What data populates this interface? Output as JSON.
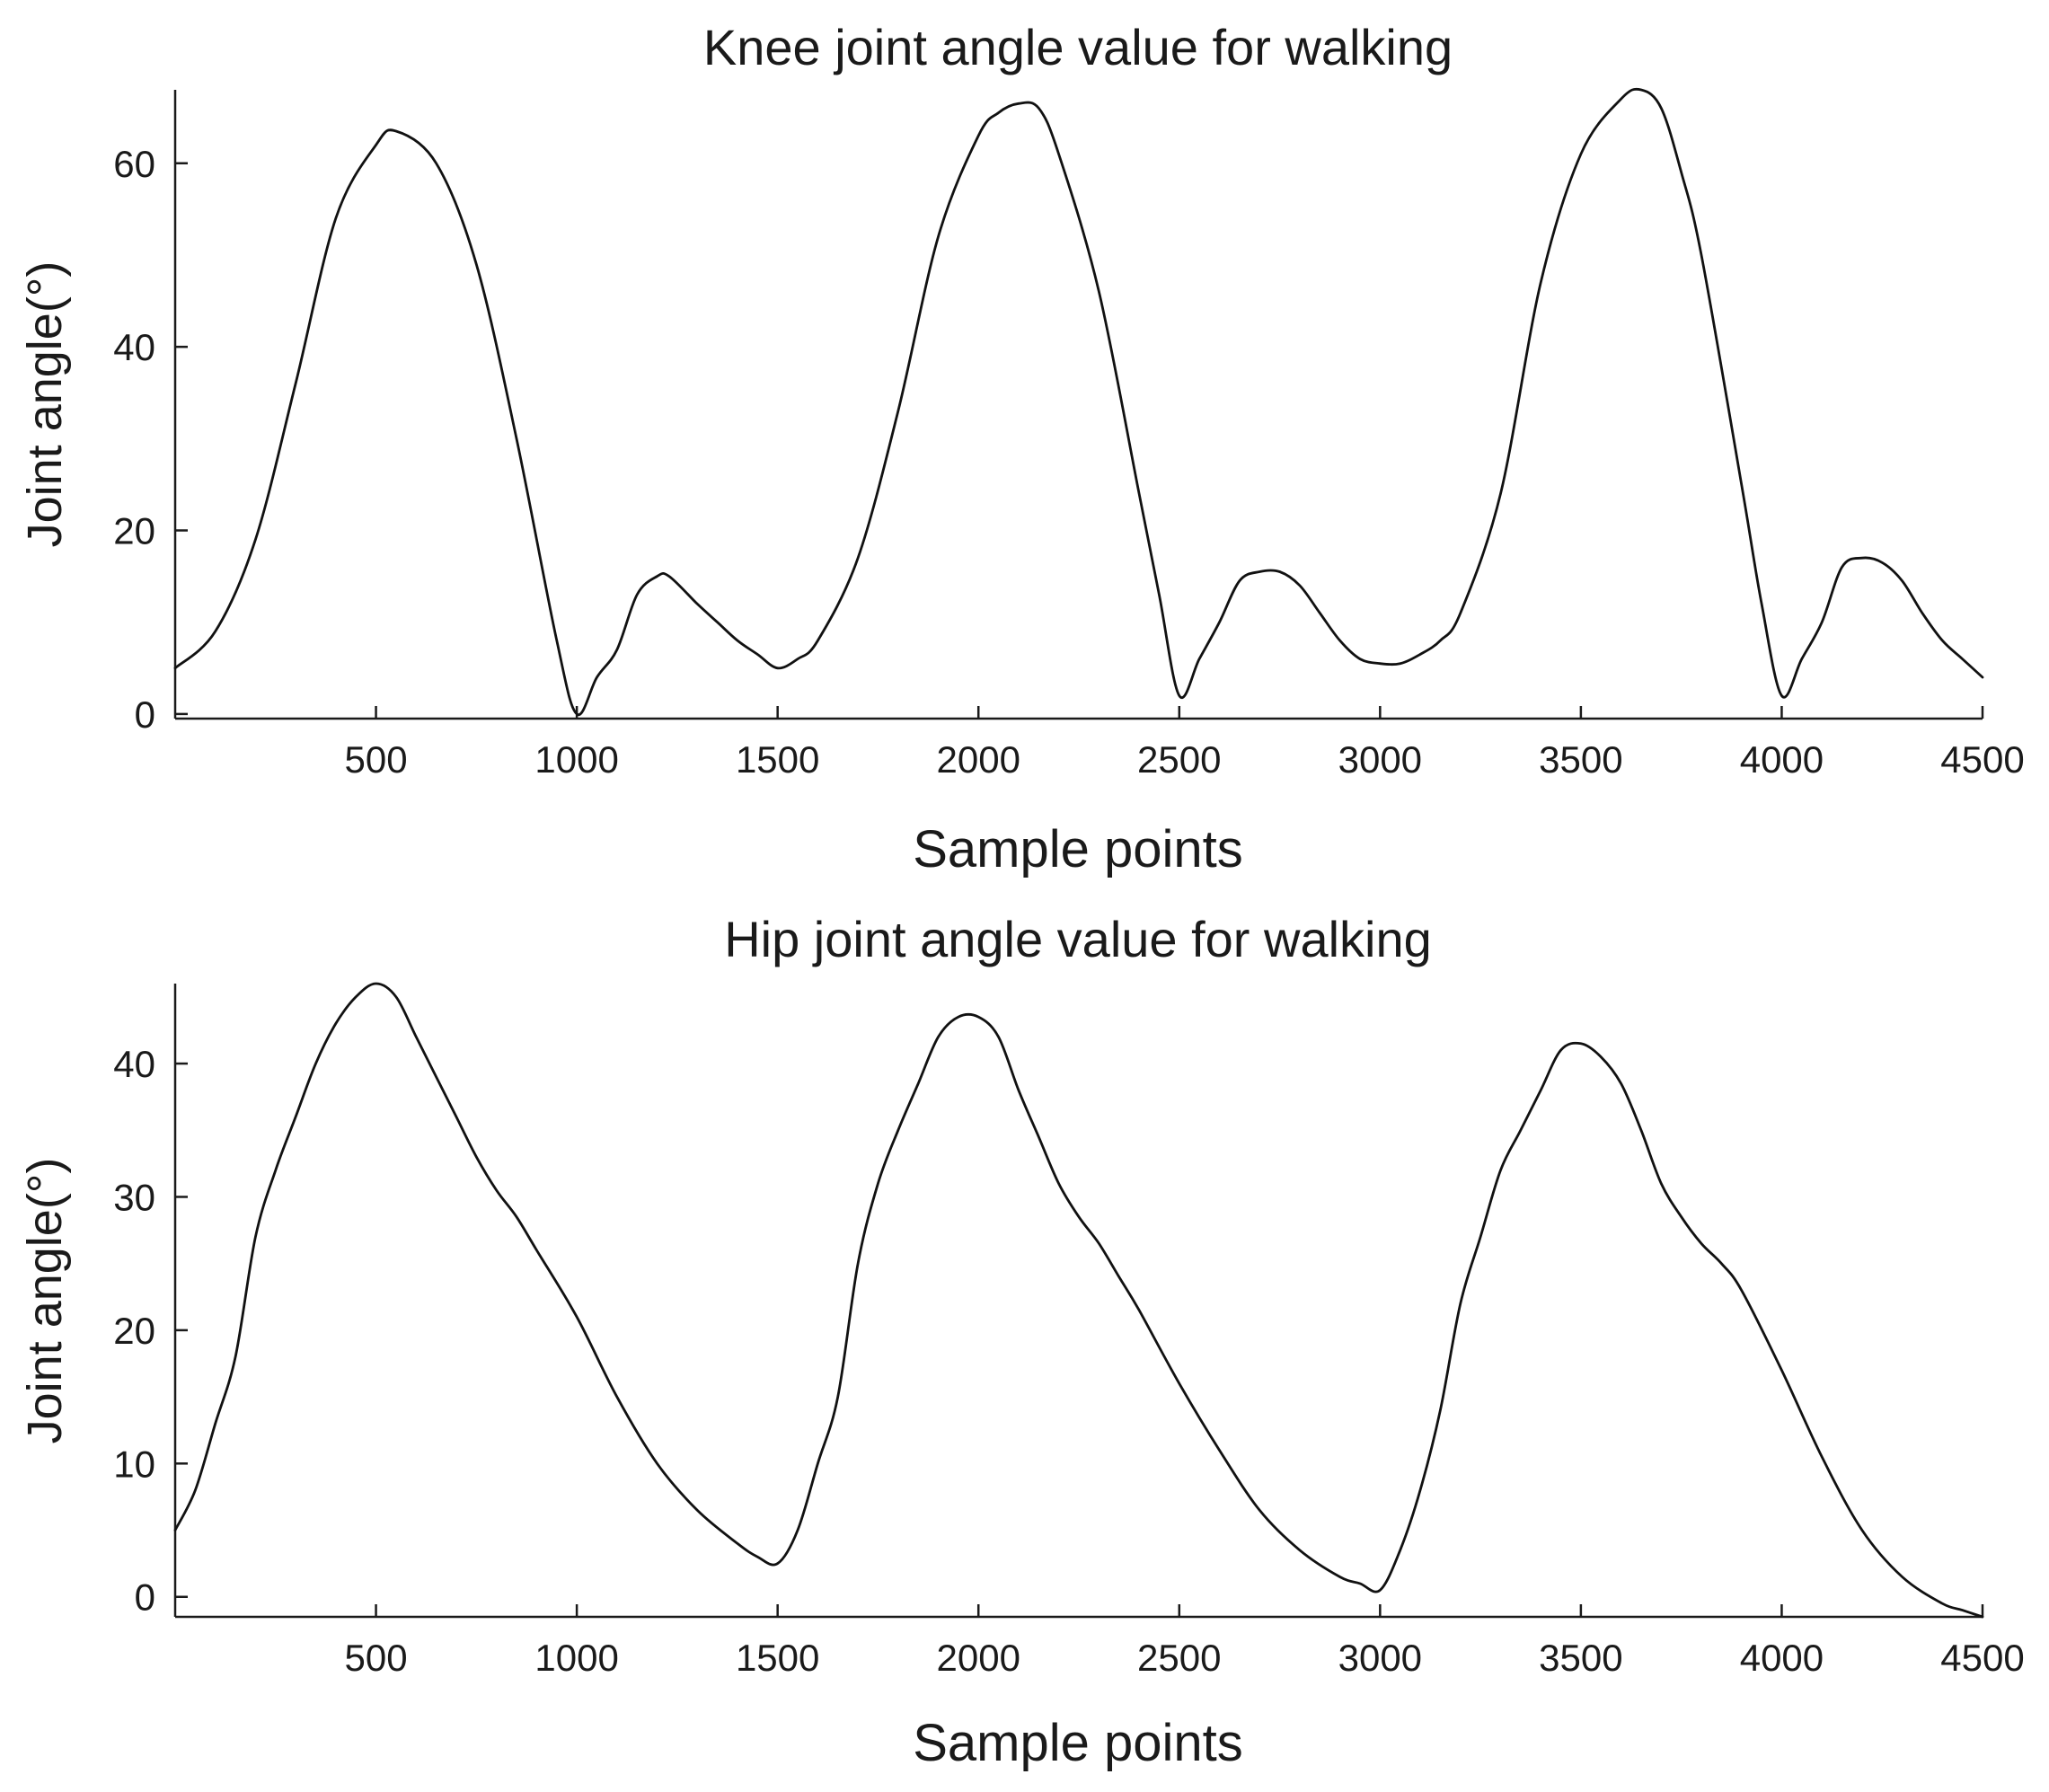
{
  "chart_data": [
    {
      "type": "line",
      "title": "Knee joint angle value for walking",
      "xlabel": "Sample points",
      "ylabel": "Joint angle(°)",
      "xlim": [
        0,
        4500
      ],
      "ylim": [
        -0.5,
        68
      ],
      "xticks": [
        500,
        1000,
        1500,
        2000,
        2500,
        3000,
        3500,
        4000,
        4500
      ],
      "yticks": [
        0,
        20,
        40,
        60
      ],
      "grid": false,
      "series": [
        {
          "x": [
            0,
            100,
            200,
            300,
            400,
            500,
            550,
            650,
            750,
            850,
            950,
            1000,
            1050,
            1100,
            1150,
            1200,
            1230,
            1300,
            1350,
            1400,
            1450,
            1500,
            1550,
            1600,
            1700,
            1800,
            1900,
            2000,
            2050,
            2100,
            2150,
            2200,
            2300,
            2400,
            2450,
            2500,
            2550,
            2600,
            2650,
            2700,
            2750,
            2800,
            2850,
            2900,
            2950,
            3000,
            3050,
            3100,
            3150,
            3200,
            3300,
            3400,
            3500,
            3600,
            3650,
            3700,
            3750,
            3800,
            3900,
            3950,
            4000,
            4050,
            4100,
            4150,
            4200,
            4250,
            4300,
            4350,
            4400,
            4450,
            4500
          ],
          "values": [
            5,
            9,
            19,
            36,
            54,
            62,
            63.5,
            60,
            49,
            30,
            8,
            0,
            4,
            7,
            13,
            15,
            15,
            12,
            10,
            8,
            6.5,
            5,
            6,
            8,
            17,
            33,
            52,
            63,
            65.5,
            66.5,
            66,
            61,
            46,
            24,
            13,
            2,
            6,
            10,
            14.5,
            15.5,
            15.5,
            14,
            11,
            8,
            6,
            5.5,
            5.5,
            6.5,
            8,
            11,
            24,
            47,
            61,
            67,
            68,
            66,
            59,
            50,
            25,
            12,
            2,
            6,
            10,
            16,
            17,
            16.5,
            14.5,
            11,
            8,
            6,
            4
          ]
        }
      ]
    },
    {
      "type": "line",
      "title": "Hip joint angle value for walking",
      "xlabel": "Sample points",
      "ylabel": "Joint angle(°)",
      "xlim": [
        0,
        4500
      ],
      "ylim": [
        -1.5,
        46
      ],
      "xticks": [
        500,
        1000,
        1500,
        2000,
        2500,
        3000,
        3500,
        4000,
        4500
      ],
      "yticks": [
        0,
        10,
        20,
        30,
        40
      ],
      "grid": false,
      "series": [
        {
          "x": [
            0,
            50,
            100,
            150,
            200,
            250,
            300,
            350,
            400,
            450,
            500,
            550,
            600,
            650,
            700,
            750,
            800,
            850,
            900,
            1000,
            1100,
            1200,
            1300,
            1400,
            1450,
            1500,
            1550,
            1600,
            1650,
            1700,
            1750,
            1800,
            1850,
            1900,
            1950,
            2000,
            2050,
            2100,
            2150,
            2200,
            2250,
            2300,
            2350,
            2400,
            2500,
            2600,
            2700,
            2800,
            2900,
            2950,
            3000,
            3050,
            3100,
            3150,
            3200,
            3250,
            3300,
            3350,
            3400,
            3450,
            3500,
            3550,
            3600,
            3650,
            3700,
            3750,
            3800,
            3850,
            3900,
            4000,
            4100,
            4200,
            4300,
            4400,
            4450,
            4500
          ],
          "values": [
            5,
            8,
            13,
            18,
            27,
            32,
            36,
            40,
            43,
            45,
            46,
            45,
            42,
            39,
            36,
            33,
            30.5,
            28.5,
            26,
            21,
            15,
            10,
            6.5,
            4,
            3,
            2.5,
            5,
            10,
            15,
            25,
            31,
            35,
            38.5,
            42,
            43.5,
            43.5,
            42,
            38,
            34.5,
            31,
            28.5,
            26.5,
            24,
            21.5,
            16,
            11,
            6.5,
            3.5,
            1.5,
            1,
            0.5,
            3.5,
            8,
            14,
            22,
            27,
            32,
            35,
            38,
            41,
            41.5,
            40.5,
            38.5,
            35,
            31,
            28.5,
            26.5,
            25,
            23,
            17,
            10.5,
            5,
            1.5,
            -0.5,
            -1,
            -1.5
          ]
        }
      ]
    }
  ],
  "text": {
    "chart1": {
      "title": "Knee joint angle value for walking",
      "xlabel": "Sample points",
      "ylabel": "Joint angle(°)",
      "xtick_labels": [
        "500",
        "1000",
        "1500",
        "2000",
        "2500",
        "3000",
        "3500",
        "4000",
        "4500"
      ],
      "ytick_labels": [
        "0",
        "20",
        "40",
        "60"
      ]
    },
    "chart2": {
      "title": "Hip joint angle value for walking",
      "xlabel": "Sample points",
      "ylabel": "Joint angle(°)",
      "xtick_labels": [
        "500",
        "1000",
        "1500",
        "2000",
        "2500",
        "3000",
        "3500",
        "4000",
        "4500"
      ],
      "ytick_labels": [
        "0",
        "10",
        "20",
        "30",
        "40"
      ]
    }
  }
}
